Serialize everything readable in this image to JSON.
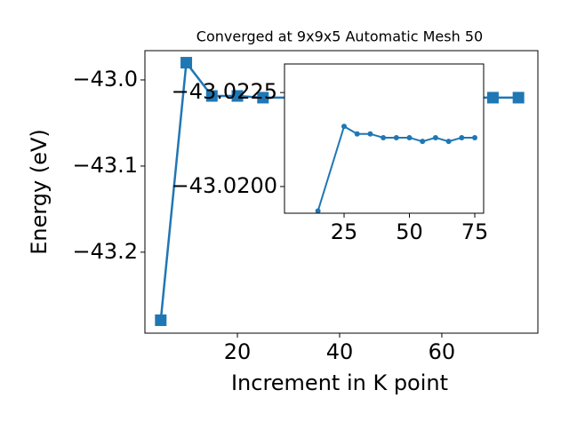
{
  "chart_data": [
    {
      "type": "line",
      "title": "Converged at 9x9x5 Automatic Mesh 50",
      "x_label": "Increment in K point",
      "y_label": "Energy (eV)",
      "x": [
        5,
        10,
        15,
        20,
        25,
        70,
        75
      ],
      "series": [
        {
          "color": "#1f77b4",
          "marker": "square",
          "values": [
            -43.279,
            -42.98,
            -43.0186,
            -43.0186,
            -43.0206,
            -43.0206,
            -43.0206
          ]
        }
      ],
      "xlim": [
        1.9,
        78.8
      ],
      "ylim": [
        -43.294,
        -42.966
      ],
      "xticks": [
        20,
        40,
        60
      ],
      "yticks": [
        {
          "value": -43.2,
          "label": "−43.2"
        },
        {
          "value": -43.1,
          "label": "−43.1"
        },
        {
          "value": -43.0,
          "label": "−43.0"
        }
      ]
    },
    {
      "type": "line",
      "x": [
        15,
        25,
        30,
        35,
        40,
        45,
        50,
        55,
        60,
        65,
        70,
        75
      ],
      "series": [
        {
          "color": "#1f77b4",
          "marker": "circle",
          "values": [
            -43.01935,
            -43.0216,
            -43.0214,
            -43.0214,
            -43.0213,
            -43.0213,
            -43.0213,
            -43.0212,
            -43.0213,
            -43.0212,
            -43.0213,
            -43.0213
          ]
        }
      ],
      "xlim": [
        2.2,
        78.4
      ],
      "ylim": [
        -43.01929,
        -43.02326
      ],
      "xticks": [
        25,
        50,
        75
      ],
      "yticks": [
        {
          "value": -43.02,
          "label": "−43.0200"
        },
        {
          "value": -43.0225,
          "label": "−43.0225"
        }
      ]
    }
  ]
}
